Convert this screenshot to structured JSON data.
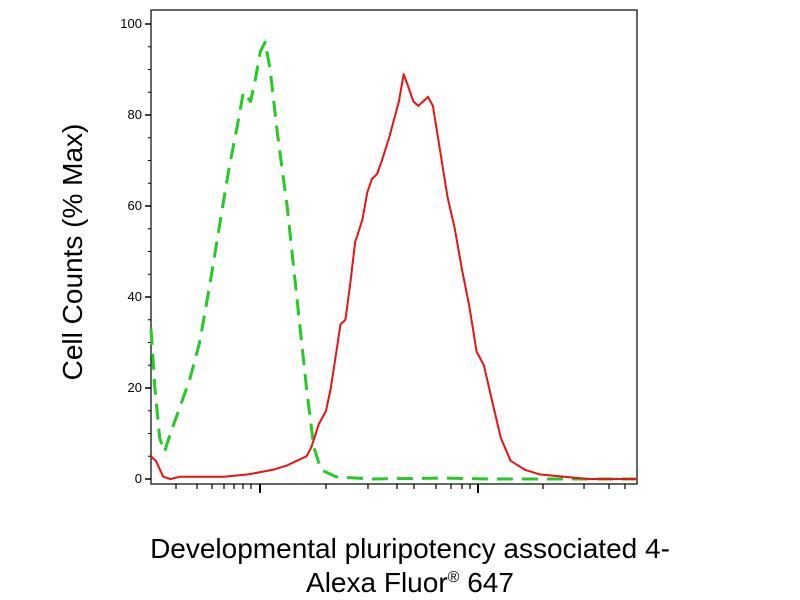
{
  "chart_data": {
    "type": "line",
    "ylabel": "Cell Counts (% Max)",
    "xlabel_line1": "Developmental pluripotency associated 4-",
    "xlabel_line2_main": "Alexa Fluor",
    "xlabel_line2_sup": "®",
    "xlabel_line2_rest": " 647",
    "ylim": [
      0,
      100
    ],
    "xlim": [
      0,
      1
    ],
    "x_scale": "log",
    "x_tick_labels": [],
    "y_ticks": [
      {
        "value": 0,
        "label": "0"
      },
      {
        "value": 20,
        "label": "20"
      },
      {
        "value": 40,
        "label": "40"
      },
      {
        "value": 60,
        "label": "60"
      },
      {
        "value": 80,
        "label": "80"
      },
      {
        "value": 100,
        "label": "100"
      }
    ],
    "grid": false,
    "series": [
      {
        "color": "#22cc22",
        "style": "dashed",
        "points": [
          [
            0.0,
            33
          ],
          [
            0.008,
            20
          ],
          [
            0.018,
            9
          ],
          [
            0.028,
            6
          ],
          [
            0.04,
            10
          ],
          [
            0.06,
            16
          ],
          [
            0.08,
            22
          ],
          [
            0.1,
            30
          ],
          [
            0.12,
            42
          ],
          [
            0.14,
            55
          ],
          [
            0.16,
            68
          ],
          [
            0.18,
            79
          ],
          [
            0.19,
            85
          ],
          [
            0.205,
            83
          ],
          [
            0.215,
            88
          ],
          [
            0.225,
            94
          ],
          [
            0.235,
            96
          ],
          [
            0.245,
            90
          ],
          [
            0.26,
            76
          ],
          [
            0.28,
            60
          ],
          [
            0.3,
            40
          ],
          [
            0.32,
            20
          ],
          [
            0.335,
            7
          ],
          [
            0.35,
            2
          ],
          [
            0.38,
            0.5
          ],
          [
            0.45,
            0
          ],
          [
            0.6,
            0.2
          ],
          [
            0.7,
            0
          ],
          [
            1.0,
            0
          ]
        ]
      },
      {
        "color": "#ee1111",
        "style": "solid",
        "points": [
          [
            0.0,
            5
          ],
          [
            0.01,
            4
          ],
          [
            0.025,
            0.5
          ],
          [
            0.04,
            0
          ],
          [
            0.06,
            0.5
          ],
          [
            0.1,
            0.5
          ],
          [
            0.15,
            0.5
          ],
          [
            0.2,
            1
          ],
          [
            0.25,
            2
          ],
          [
            0.28,
            3
          ],
          [
            0.3,
            4
          ],
          [
            0.32,
            5
          ],
          [
            0.33,
            7
          ],
          [
            0.345,
            12
          ],
          [
            0.36,
            15
          ],
          [
            0.37,
            20
          ],
          [
            0.38,
            27
          ],
          [
            0.39,
            34
          ],
          [
            0.4,
            35
          ],
          [
            0.41,
            43
          ],
          [
            0.42,
            52
          ],
          [
            0.435,
            57
          ],
          [
            0.445,
            63
          ],
          [
            0.455,
            66
          ],
          [
            0.465,
            67
          ],
          [
            0.475,
            70
          ],
          [
            0.49,
            75
          ],
          [
            0.5,
            79
          ],
          [
            0.51,
            83
          ],
          [
            0.52,
            89
          ],
          [
            0.53,
            86
          ],
          [
            0.54,
            83
          ],
          [
            0.55,
            82
          ],
          [
            0.56,
            83
          ],
          [
            0.57,
            84
          ],
          [
            0.58,
            82
          ],
          [
            0.595,
            72
          ],
          [
            0.61,
            62
          ],
          [
            0.625,
            55
          ],
          [
            0.64,
            46
          ],
          [
            0.655,
            38
          ],
          [
            0.67,
            28
          ],
          [
            0.685,
            25
          ],
          [
            0.7,
            18
          ],
          [
            0.72,
            9
          ],
          [
            0.74,
            4
          ],
          [
            0.77,
            2
          ],
          [
            0.8,
            1
          ],
          [
            0.85,
            0.5
          ],
          [
            0.9,
            0
          ],
          [
            1.0,
            0
          ]
        ]
      }
    ]
  }
}
